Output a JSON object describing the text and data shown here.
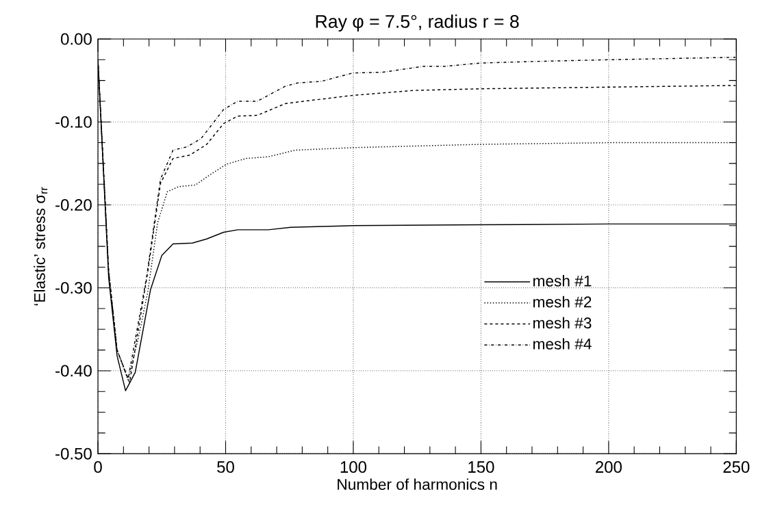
{
  "chart_data": {
    "type": "line",
    "title": "Ray  φ = 7.5°,   radius  r = 8",
    "xlabel": "Number of harmonics n",
    "ylabel": "‘Elastic’ stress σ$_{rr}$",
    "xlim": [
      0,
      250
    ],
    "ylim": [
      -0.5,
      0
    ],
    "xticks": [
      0,
      50,
      100,
      150,
      200,
      250
    ],
    "yticks": [
      {
        "value": 0,
        "label": "0.00"
      },
      {
        "value": -0.1,
        "label": "-0.10"
      },
      {
        "value": -0.2,
        "label": "-0.20"
      },
      {
        "value": -0.3,
        "label": "-0.30"
      },
      {
        "value": -0.4,
        "label": "-0.40"
      },
      {
        "value": -0.5,
        "label": "-0.50"
      }
    ],
    "grid": true,
    "legend": "right",
    "marker": "none",
    "series": [
      {
        "name": "mesh #1",
        "color": "#000000",
        "line_style": "solid",
        "x": [
          0,
          4.2,
          7.5,
          10.8,
          14.6,
          20.6,
          25,
          29.4,
          37,
          42.6,
          49.2,
          54.7,
          66.7,
          75.5,
          100,
          150,
          200,
          250
        ],
        "values": [
          -0.025,
          -0.288,
          -0.382,
          -0.424,
          -0.402,
          -0.302,
          -0.261,
          -0.247,
          -0.246,
          -0.241,
          -0.233,
          -0.23,
          -0.23,
          -0.227,
          -0.225,
          -0.224,
          -0.223,
          -0.223
        ]
      },
      {
        "name": "mesh #2",
        "color": "#000000",
        "line_style": "dotted",
        "x": [
          0,
          4.2,
          7.5,
          11.8,
          15.7,
          19.5,
          23.4,
          27.2,
          31.6,
          38.2,
          43.7,
          50.3,
          58,
          66.7,
          77.2,
          99.7,
          149.7,
          199.9,
          249.7
        ],
        "values": [
          -0.025,
          -0.28,
          -0.375,
          -0.411,
          -0.362,
          -0.305,
          -0.221,
          -0.184,
          -0.178,
          -0.176,
          -0.164,
          -0.151,
          -0.144,
          -0.142,
          -0.134,
          -0.131,
          -0.127,
          -0.125,
          -0.125
        ]
      },
      {
        "name": "mesh #3",
        "color": "#000000",
        "line_style": "dashed",
        "x": [
          0,
          4.2,
          7.5,
          12.4,
          19.5,
          24.5,
          29.4,
          36,
          42.6,
          49.2,
          54.7,
          62.4,
          73.3,
          78.1,
          99.7,
          123.7,
          149.7,
          199.9,
          249.7
        ],
        "values": [
          -0.025,
          -0.28,
          -0.375,
          -0.414,
          -0.281,
          -0.174,
          -0.144,
          -0.14,
          -0.127,
          -0.102,
          -0.093,
          -0.092,
          -0.078,
          -0.076,
          -0.068,
          -0.062,
          -0.06,
          -0.058,
          -0.056
        ]
      },
      {
        "name": "mesh #4",
        "color": "#000000",
        "line_style": "dashdot",
        "x": [
          0,
          4.2,
          7.5,
          11.8,
          19,
          24.5,
          29.4,
          34.9,
          40.4,
          49.2,
          54.7,
          62.4,
          73.3,
          78.1,
          87.6,
          99.7,
          111.7,
          127.3,
          135.8,
          149.7,
          171.7,
          199.9,
          249.7
        ],
        "values": [
          -0.025,
          -0.28,
          -0.375,
          -0.41,
          -0.288,
          -0.169,
          -0.134,
          -0.13,
          -0.12,
          -0.085,
          -0.075,
          -0.075,
          -0.057,
          -0.053,
          -0.051,
          -0.041,
          -0.04,
          -0.033,
          -0.033,
          -0.029,
          -0.027,
          -0.025,
          -0.022
        ]
      }
    ]
  }
}
